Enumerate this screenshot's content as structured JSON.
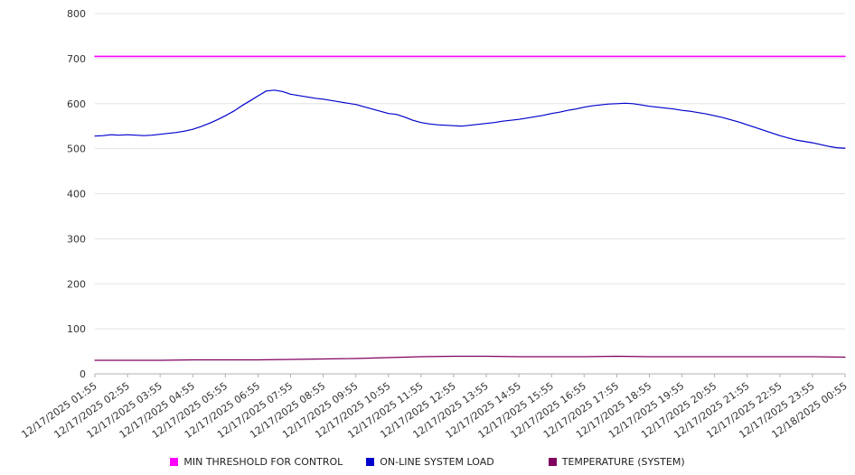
{
  "chart_data": {
    "type": "line",
    "title": "",
    "xlabel": "",
    "ylabel": "",
    "ylim": [
      0,
      800
    ],
    "y_ticks": [
      0,
      100,
      200,
      300,
      400,
      500,
      600,
      700,
      800
    ],
    "grid": true,
    "legend_position": "bottom",
    "x_labels": [
      "12/17/2025 01:55",
      "12/17/2025 02:55",
      "12/17/2025 03:55",
      "12/17/2025 04:55",
      "12/17/2025 05:55",
      "12/17/2025 06:55",
      "12/17/2025 07:55",
      "12/17/2025 08:55",
      "12/17/2025 09:55",
      "12/17/2025 10:55",
      "12/17/2025 11:55",
      "12/17/2025 12:55",
      "12/17/2025 13:55",
      "12/17/2025 14:55",
      "12/17/2025 15:55",
      "12/17/2025 16:55",
      "12/17/2025 17:55",
      "12/17/2025 18:55",
      "12/17/2025 19:55",
      "12/17/2025 20:55",
      "12/17/2025 21:55",
      "12/17/2025 22:55",
      "12/17/2025 23:55",
      "12/18/2025 00:55"
    ],
    "series": [
      {
        "name": "MIN THRESHOLD FOR CONTROL",
        "color": "#FF00FF",
        "stroke_width": 1.6,
        "values": [
          705,
          705
        ]
      },
      {
        "name": "ON-LINE SYSTEM LOAD",
        "color": "#0000CC",
        "stroke_width": 1.2,
        "values": [
          528,
          529,
          531,
          530,
          531,
          530,
          529,
          530,
          532,
          534,
          536,
          539,
          543,
          549,
          556,
          564,
          573,
          583,
          595,
          606,
          617,
          628,
          630,
          627,
          621,
          618,
          615,
          612,
          610,
          607,
          604,
          601,
          598,
          593,
          588,
          583,
          578,
          576,
          570,
          563,
          558,
          555,
          553,
          552,
          551,
          550,
          552,
          554,
          556,
          558,
          561,
          563,
          565,
          568,
          571,
          574,
          578,
          581,
          585,
          588,
          592,
          595,
          597,
          599,
          600,
          601,
          600,
          597,
          594,
          592,
          590,
          588,
          585,
          583,
          580,
          577,
          573,
          569,
          564,
          559,
          553,
          547,
          541,
          535,
          529,
          524,
          519,
          516,
          513,
          509,
          505,
          502,
          501
        ]
      },
      {
        "name": "TEMPERATURE (SYSTEM)",
        "color": "#800060",
        "stroke_width": 1.2,
        "values": [
          30,
          30,
          30,
          31,
          31,
          31,
          32,
          33,
          34,
          36,
          38,
          39,
          39,
          38,
          38,
          38,
          39,
          38,
          38,
          38,
          38,
          38,
          38,
          37
        ]
      }
    ],
    "axis_color": "#b0b0b0",
    "grid_color": "#e3e3e3"
  }
}
